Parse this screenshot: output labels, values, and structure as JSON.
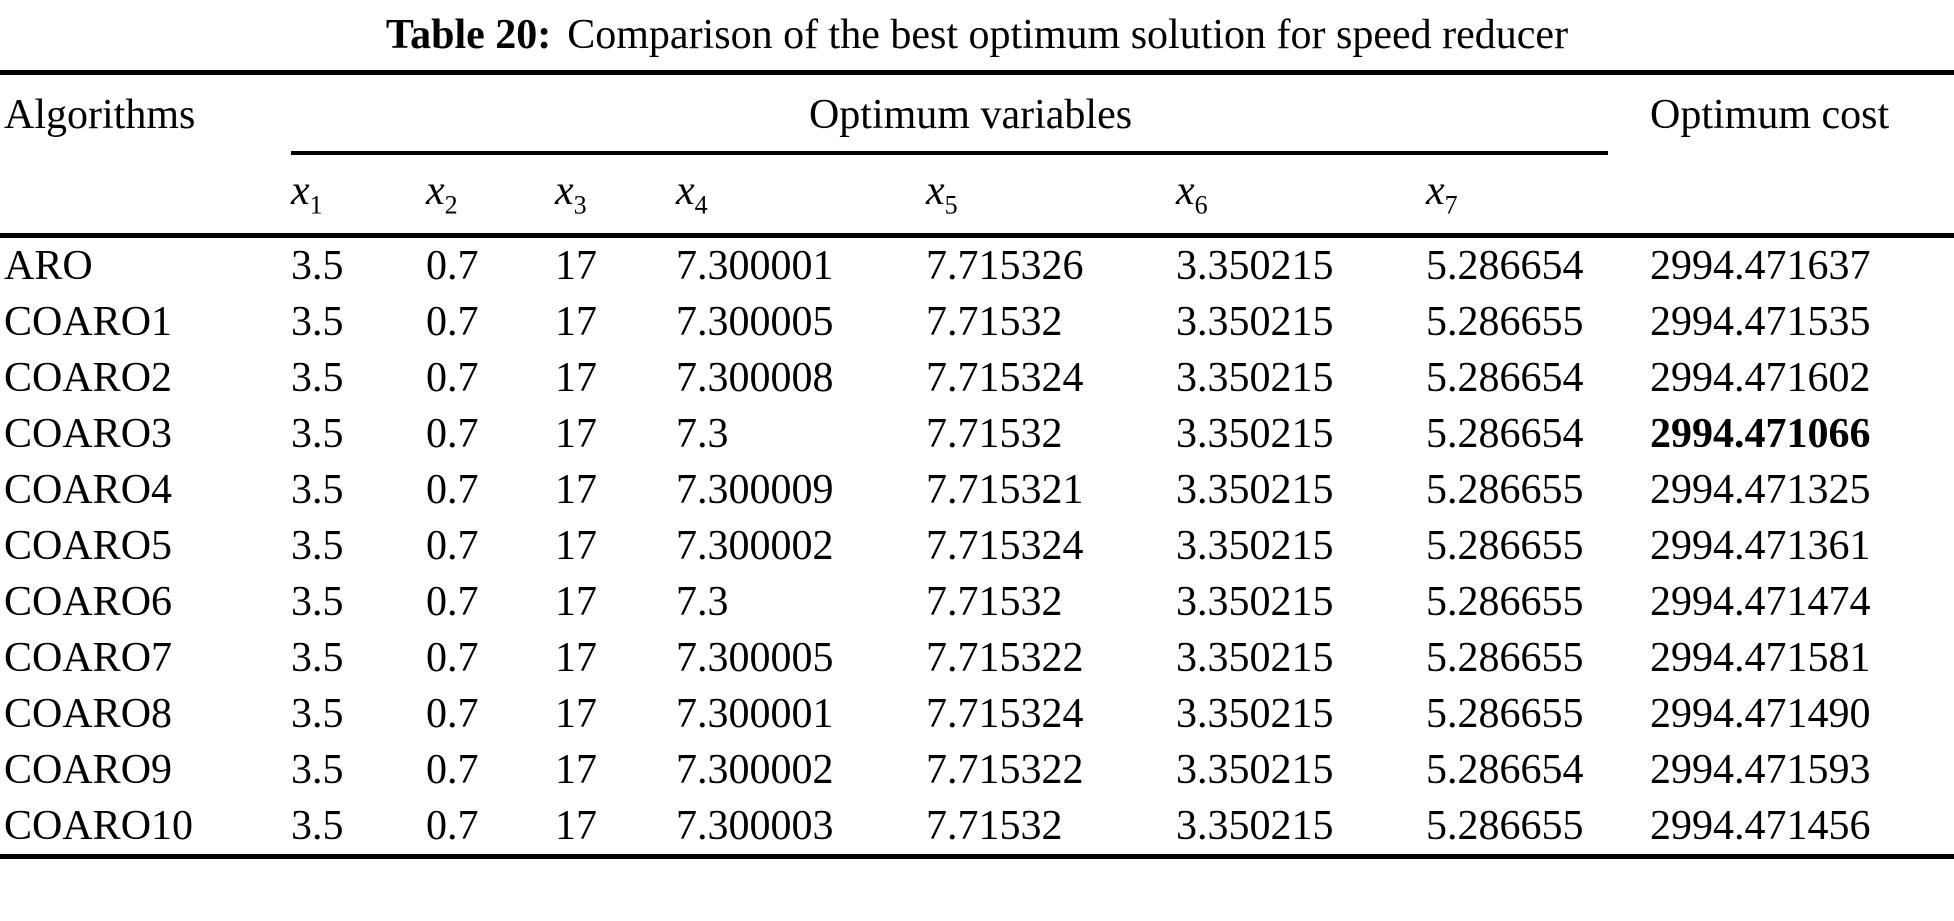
{
  "table": {
    "caption": {
      "label": "Table 20:",
      "text": "Comparison of the best optimum solution for speed reducer"
    },
    "header": {
      "algorithms": "Algorithms",
      "optimum_variables": "Optimum variables",
      "optimum_cost": "Optimum cost",
      "variables": [
        {
          "base": "x",
          "sub": "1"
        },
        {
          "base": "x",
          "sub": "2"
        },
        {
          "base": "x",
          "sub": "3"
        },
        {
          "base": "x",
          "sub": "4"
        },
        {
          "base": "x",
          "sub": "5"
        },
        {
          "base": "x",
          "sub": "6"
        },
        {
          "base": "x",
          "sub": "7"
        }
      ]
    },
    "rows": [
      {
        "algorithm": "ARO",
        "x1": "3.5",
        "x2": "0.7",
        "x3": "17",
        "x4": "7.300001",
        "x5": "7.715326",
        "x6": "3.350215",
        "x7": "5.286654",
        "cost": "2994.471637",
        "bold": false
      },
      {
        "algorithm": "COARO1",
        "x1": "3.5",
        "x2": "0.7",
        "x3": "17",
        "x4": "7.300005",
        "x5": "7.71532",
        "x6": "3.350215",
        "x7": "5.286655",
        "cost": "2994.471535",
        "bold": false
      },
      {
        "algorithm": "COARO2",
        "x1": "3.5",
        "x2": "0.7",
        "x3": "17",
        "x4": "7.300008",
        "x5": "7.715324",
        "x6": "3.350215",
        "x7": "5.286654",
        "cost": "2994.471602",
        "bold": false
      },
      {
        "algorithm": "COARO3",
        "x1": "3.5",
        "x2": "0.7",
        "x3": "17",
        "x4": "7.3",
        "x5": "7.71532",
        "x6": "3.350215",
        "x7": "5.286654",
        "cost": "2994.471066",
        "bold": true
      },
      {
        "algorithm": "COARO4",
        "x1": "3.5",
        "x2": "0.7",
        "x3": "17",
        "x4": "7.300009",
        "x5": "7.715321",
        "x6": "3.350215",
        "x7": "5.286655",
        "cost": "2994.471325",
        "bold": false
      },
      {
        "algorithm": "COARO5",
        "x1": "3.5",
        "x2": "0.7",
        "x3": "17",
        "x4": "7.300002",
        "x5": "7.715324",
        "x6": "3.350215",
        "x7": "5.286655",
        "cost": "2994.471361",
        "bold": false
      },
      {
        "algorithm": "COARO6",
        "x1": "3.5",
        "x2": "0.7",
        "x3": "17",
        "x4": "7.3",
        "x5": "7.71532",
        "x6": "3.350215",
        "x7": "5.286655",
        "cost": "2994.471474",
        "bold": false
      },
      {
        "algorithm": "COARO7",
        "x1": "3.5",
        "x2": "0.7",
        "x3": "17",
        "x4": "7.300005",
        "x5": "7.715322",
        "x6": "3.350215",
        "x7": "5.286655",
        "cost": "2994.471581",
        "bold": false
      },
      {
        "algorithm": "COARO8",
        "x1": "3.5",
        "x2": "0.7",
        "x3": "17",
        "x4": "7.300001",
        "x5": "7.715324",
        "x6": "3.350215",
        "x7": "5.286655",
        "cost": "2994.471490",
        "bold": false
      },
      {
        "algorithm": "COARO9",
        "x1": "3.5",
        "x2": "0.7",
        "x3": "17",
        "x4": "7.300002",
        "x5": "7.715322",
        "x6": "3.350215",
        "x7": "5.286654",
        "cost": "2994.471593",
        "bold": false
      },
      {
        "algorithm": "COARO10",
        "x1": "3.5",
        "x2": "0.7",
        "x3": "17",
        "x4": "7.300003",
        "x5": "7.71532",
        "x6": "3.350215",
        "x7": "5.286655",
        "cost": "2994.471456",
        "bold": false
      }
    ]
  },
  "colors": {
    "text": "#000000",
    "background": "#ffffff",
    "rule": "#000000"
  }
}
